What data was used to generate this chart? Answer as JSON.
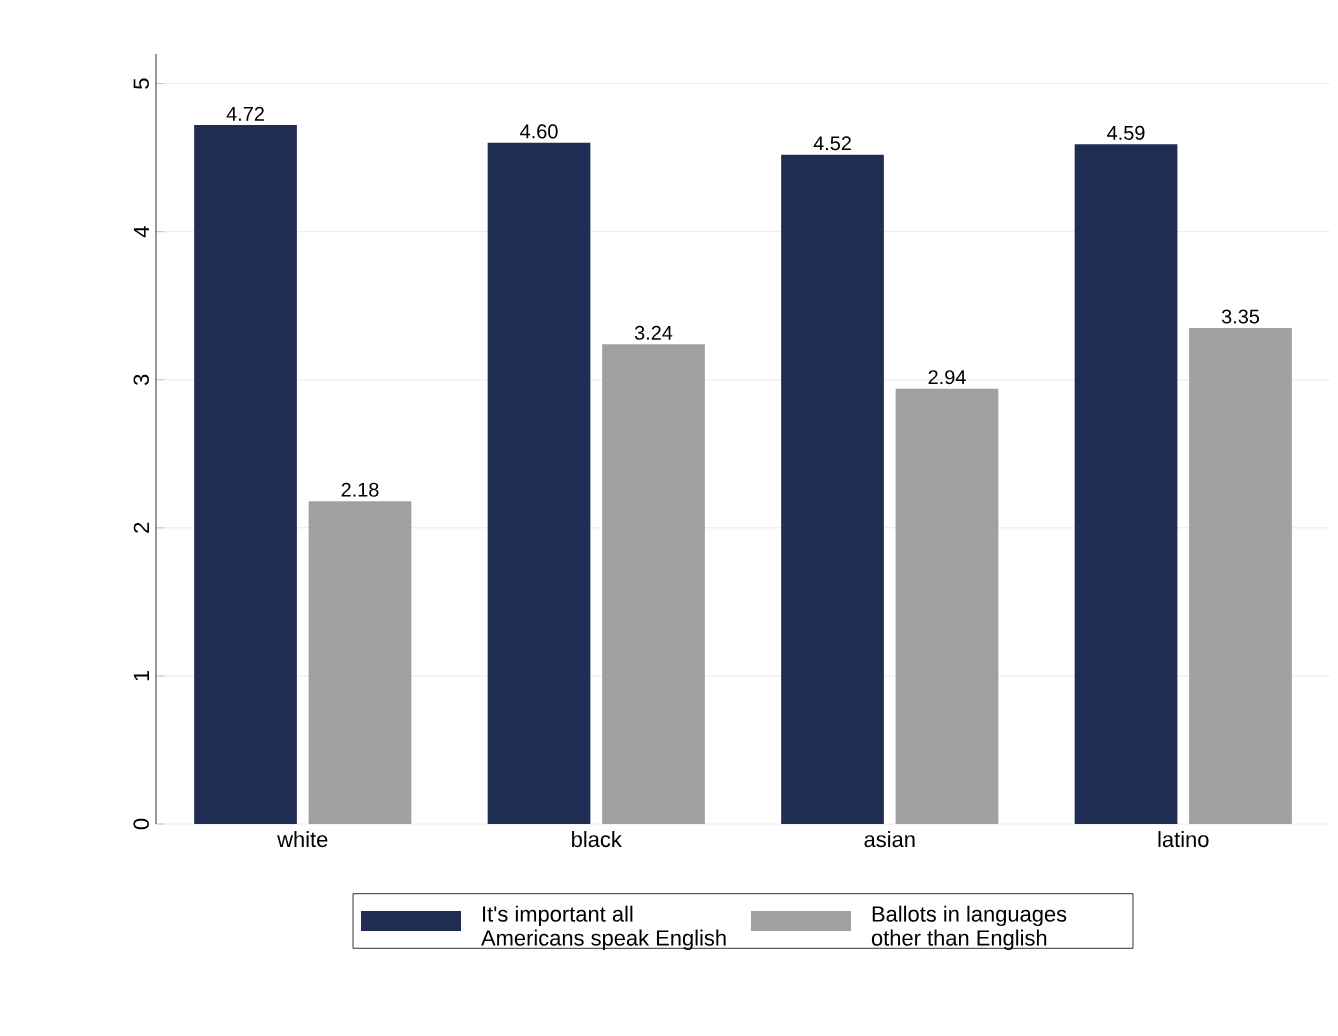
{
  "chart_data": {
    "type": "bar",
    "categories": [
      "white",
      "black",
      "asian",
      "latino"
    ],
    "series": [
      {
        "name": "It's important all Americans speak English",
        "color": "#1f2d55",
        "values": [
          4.72,
          4.6,
          4.52,
          4.59
        ],
        "value_labels": [
          "4.72",
          "4.60",
          "4.52",
          "4.59"
        ]
      },
      {
        "name": "Ballots in languages other than English",
        "color": "#a0a0a0",
        "values": [
          2.18,
          3.24,
          2.94,
          3.35
        ],
        "value_labels": [
          "2.18",
          "3.24",
          "2.94",
          "3.35"
        ]
      }
    ],
    "ylim": [
      0,
      5.2
    ],
    "yticks": [
      0,
      1,
      2,
      3,
      4,
      5
    ],
    "grid": "y",
    "legend": "bottom"
  }
}
